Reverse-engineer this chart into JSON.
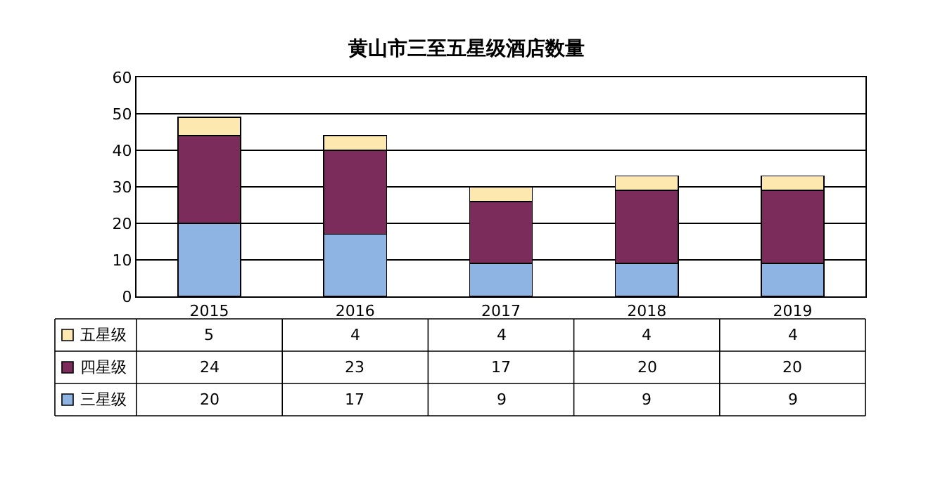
{
  "chart_data": {
    "type": "bar",
    "title": "黄山市三至五星级酒店数量",
    "stacked": true,
    "categories": [
      "2015",
      "2016",
      "2017",
      "2018",
      "2019"
    ],
    "series": [
      {
        "name": "三星级",
        "color": "#8db4e2",
        "values": [
          20,
          17,
          9,
          9,
          9
        ]
      },
      {
        "name": "四星级",
        "color": "#7b2c5a",
        "values": [
          24,
          23,
          17,
          20,
          20
        ]
      },
      {
        "name": "五星级",
        "color": "#fde9b0",
        "values": [
          5,
          4,
          4,
          4,
          4
        ]
      }
    ],
    "ylim": [
      0,
      60
    ],
    "yticks": [
      0,
      10,
      20,
      30,
      40,
      50,
      60
    ],
    "grid": "y",
    "legend": "bottom left",
    "data_labels": true
  }
}
